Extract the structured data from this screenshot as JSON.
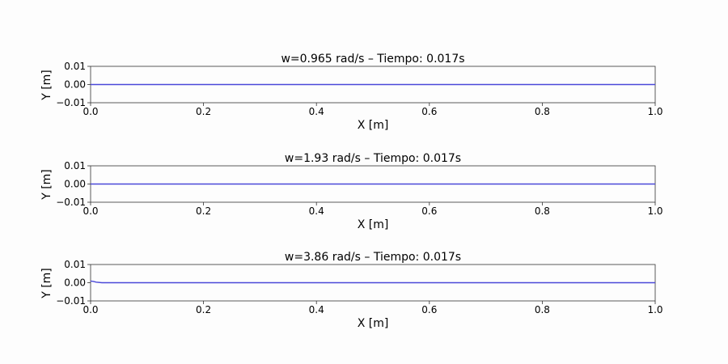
{
  "chart_data": [
    {
      "type": "line",
      "title": "w=0.965 rad/s – Tiempo: 0.017s",
      "xlabel": "X [m]",
      "ylabel": "Y [m]",
      "xlim": [
        0.0,
        1.0
      ],
      "ylim": [
        -0.01,
        0.01
      ],
      "xticks": [
        "0.0",
        "0.2",
        "0.4",
        "0.6",
        "0.8",
        "1.0"
      ],
      "yticks": [
        "0.01",
        "0.00",
        "−0.01"
      ],
      "grid": false,
      "series": [
        {
          "color": "#4a48d8",
          "x": [
            0.0,
            0.1,
            0.2,
            0.3,
            0.4,
            0.5,
            0.6,
            0.7,
            0.8,
            0.9,
            1.0
          ],
          "y": [
            0.0,
            0.0,
            0.0,
            0.0,
            0.0,
            0.0,
            0.0,
            0.0,
            0.0,
            0.0,
            0.0
          ]
        }
      ]
    },
    {
      "type": "line",
      "title": "w=1.93 rad/s – Tiempo: 0.017s",
      "xlabel": "X [m]",
      "ylabel": "Y [m]",
      "xlim": [
        0.0,
        1.0
      ],
      "ylim": [
        -0.01,
        0.01
      ],
      "xticks": [
        "0.0",
        "0.2",
        "0.4",
        "0.6",
        "0.8",
        "1.0"
      ],
      "yticks": [
        "0.01",
        "0.00",
        "−0.01"
      ],
      "grid": false,
      "series": [
        {
          "color": "#4a48d8",
          "x": [
            0.0,
            0.1,
            0.2,
            0.3,
            0.4,
            0.5,
            0.6,
            0.7,
            0.8,
            0.9,
            1.0
          ],
          "y": [
            0.0,
            0.0,
            0.0,
            0.0,
            0.0,
            0.0,
            0.0,
            0.0,
            0.0,
            0.0,
            0.0
          ]
        }
      ]
    },
    {
      "type": "line",
      "title": "w=3.86 rad/s – Tiempo: 0.017s",
      "xlabel": "X [m]",
      "ylabel": "Y [m]",
      "xlim": [
        0.0,
        1.0
      ],
      "ylim": [
        -0.01,
        0.01
      ],
      "xticks": [
        "0.0",
        "0.2",
        "0.4",
        "0.6",
        "0.8",
        "1.0"
      ],
      "yticks": [
        "0.01",
        "0.00",
        "−0.01"
      ],
      "grid": false,
      "series": [
        {
          "color": "#4a48d8",
          "x": [
            0.0,
            0.005,
            0.01,
            0.02,
            0.05,
            0.1,
            0.2,
            0.3,
            0.4,
            0.5,
            0.6,
            0.7,
            0.8,
            0.9,
            1.0
          ],
          "y": [
            0.0009,
            0.0007,
            0.0003,
            0.0,
            0.0,
            0.0,
            0.0,
            0.0,
            0.0,
            0.0,
            0.0,
            0.0,
            0.0,
            0.0,
            0.0
          ]
        }
      ]
    }
  ]
}
